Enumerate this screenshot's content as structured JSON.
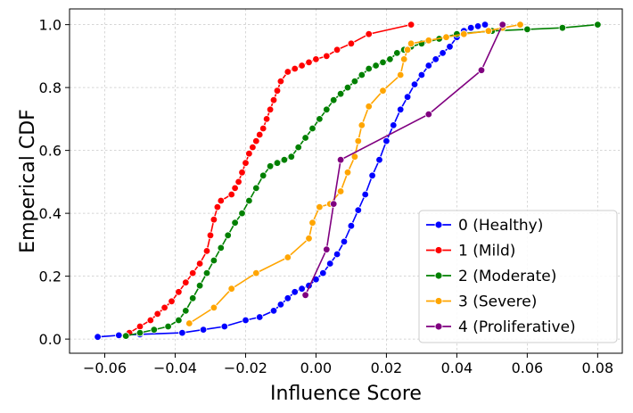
{
  "chart_data": {
    "type": "line",
    "title": "",
    "xlabel": "Influence Score",
    "ylabel": "Emperical CDF",
    "xlim": [
      -0.07,
      0.087
    ],
    "ylim": [
      -0.045,
      1.05
    ],
    "xticks": [
      -0.06,
      -0.04,
      -0.02,
      0.0,
      0.02,
      0.04,
      0.06,
      0.08
    ],
    "xtick_labels": [
      "−0.06",
      "−0.04",
      "−0.02",
      "0.00",
      "0.02",
      "0.04",
      "0.06",
      "0.08"
    ],
    "yticks": [
      0.0,
      0.2,
      0.4,
      0.6,
      0.8,
      1.0
    ],
    "ytick_labels": [
      "0.0",
      "0.2",
      "0.4",
      "0.6",
      "0.8",
      "1.0"
    ],
    "grid": true,
    "legend_position": "lower-right",
    "series": [
      {
        "name": "0 (Healthy)",
        "color": "#0000ff",
        "x": [
          -0.062,
          -0.056,
          -0.05,
          -0.038,
          -0.032,
          -0.026,
          -0.02,
          -0.016,
          -0.012,
          -0.01,
          -0.008,
          -0.006,
          -0.004,
          -0.002,
          0.0,
          0.002,
          0.004,
          0.006,
          0.008,
          0.01,
          0.012,
          0.014,
          0.016,
          0.018,
          0.02,
          0.022,
          0.024,
          0.026,
          0.028,
          0.03,
          0.032,
          0.034,
          0.036,
          0.038,
          0.04,
          0.042,
          0.044,
          0.046,
          0.048
        ],
        "y": [
          0.007,
          0.012,
          0.015,
          0.02,
          0.03,
          0.04,
          0.06,
          0.07,
          0.09,
          0.11,
          0.13,
          0.15,
          0.16,
          0.17,
          0.19,
          0.21,
          0.24,
          0.27,
          0.31,
          0.36,
          0.41,
          0.46,
          0.52,
          0.57,
          0.63,
          0.68,
          0.73,
          0.77,
          0.81,
          0.84,
          0.87,
          0.89,
          0.91,
          0.93,
          0.96,
          0.98,
          0.99,
          0.995,
          1.0
        ]
      },
      {
        "name": "1 (Mild)",
        "color": "#ff0000",
        "x": [
          -0.053,
          -0.05,
          -0.047,
          -0.045,
          -0.043,
          -0.041,
          -0.039,
          -0.037,
          -0.035,
          -0.033,
          -0.031,
          -0.03,
          -0.029,
          -0.028,
          -0.027,
          -0.024,
          -0.023,
          -0.022,
          -0.021,
          -0.02,
          -0.019,
          -0.018,
          -0.017,
          -0.016,
          -0.015,
          -0.014,
          -0.013,
          -0.012,
          -0.011,
          -0.01,
          -0.008,
          -0.006,
          -0.004,
          -0.002,
          0.0,
          0.003,
          0.006,
          0.01,
          0.015,
          0.027
        ],
        "y": [
          0.02,
          0.04,
          0.06,
          0.08,
          0.1,
          0.12,
          0.15,
          0.18,
          0.21,
          0.24,
          0.28,
          0.33,
          0.38,
          0.42,
          0.44,
          0.46,
          0.48,
          0.5,
          0.53,
          0.56,
          0.59,
          0.61,
          0.63,
          0.65,
          0.67,
          0.7,
          0.73,
          0.76,
          0.79,
          0.82,
          0.85,
          0.86,
          0.87,
          0.88,
          0.89,
          0.9,
          0.92,
          0.94,
          0.97,
          1.0
        ]
      },
      {
        "name": "2 (Moderate)",
        "color": "#008000",
        "x": [
          -0.054,
          -0.05,
          -0.046,
          -0.042,
          -0.039,
          -0.037,
          -0.035,
          -0.033,
          -0.031,
          -0.029,
          -0.027,
          -0.025,
          -0.023,
          -0.021,
          -0.019,
          -0.017,
          -0.015,
          -0.013,
          -0.011,
          -0.009,
          -0.007,
          -0.005,
          -0.003,
          -0.001,
          0.001,
          0.003,
          0.005,
          0.007,
          0.009,
          0.011,
          0.013,
          0.015,
          0.017,
          0.019,
          0.021,
          0.023,
          0.025,
          0.027,
          0.03,
          0.035,
          0.04,
          0.05,
          0.06,
          0.07,
          0.08
        ],
        "y": [
          0.01,
          0.02,
          0.03,
          0.04,
          0.06,
          0.09,
          0.13,
          0.17,
          0.21,
          0.25,
          0.29,
          0.33,
          0.37,
          0.4,
          0.44,
          0.48,
          0.52,
          0.55,
          0.56,
          0.57,
          0.58,
          0.61,
          0.64,
          0.67,
          0.7,
          0.73,
          0.76,
          0.78,
          0.8,
          0.82,
          0.84,
          0.86,
          0.87,
          0.88,
          0.89,
          0.91,
          0.92,
          0.93,
          0.94,
          0.955,
          0.97,
          0.98,
          0.985,
          0.99,
          1.0
        ]
      },
      {
        "name": "3 (Severe)",
        "color": "#ffa500",
        "x": [
          -0.036,
          -0.029,
          -0.024,
          -0.017,
          -0.008,
          -0.002,
          -0.001,
          0.001,
          0.004,
          0.007,
          0.009,
          0.011,
          0.012,
          0.013,
          0.015,
          0.019,
          0.024,
          0.025,
          0.026,
          0.027,
          0.032,
          0.037,
          0.042,
          0.049,
          0.053,
          0.058
        ],
        "y": [
          0.05,
          0.1,
          0.16,
          0.21,
          0.26,
          0.32,
          0.37,
          0.42,
          0.43,
          0.47,
          0.53,
          0.58,
          0.63,
          0.68,
          0.74,
          0.79,
          0.84,
          0.89,
          0.92,
          0.94,
          0.95,
          0.96,
          0.97,
          0.98,
          0.99,
          1.0
        ]
      },
      {
        "name": "4 (Proliferative)",
        "color": "#800080",
        "x": [
          -0.003,
          0.003,
          0.005,
          0.007,
          0.032,
          0.047,
          0.053
        ],
        "y": [
          0.14,
          0.285,
          0.43,
          0.57,
          0.715,
          0.855,
          1.0
        ]
      }
    ]
  }
}
